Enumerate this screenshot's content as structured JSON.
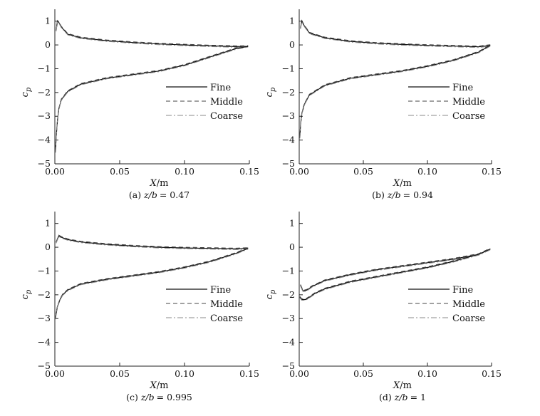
{
  "chart_data": [
    {
      "type": "line",
      "caption": "(a) z/b = 0.47",
      "caption_prefix": "(a) ",
      "caption_var": "z/b",
      "caption_value": "= 0.47",
      "xlabel": "X/m",
      "xlabel_var": "X",
      "xlabel_unit": "/m",
      "ylabel": "c_p",
      "xlim": [
        0,
        0.15
      ],
      "ylim": [
        -5,
        1.5
      ],
      "xticks": [
        "0.00",
        "0.05",
        "0.10",
        "0.15"
      ],
      "yticks": [
        "1",
        "0",
        "−1",
        "−2",
        "−3",
        "−4",
        "−5"
      ],
      "legend": [
        "Fine",
        "Middle",
        "Coarse"
      ],
      "legend_position": "lower-right",
      "grid": false,
      "series_upper": {
        "x": [
          0.001,
          0.002,
          0.003,
          0.005,
          0.01,
          0.02,
          0.04,
          0.06,
          0.08,
          0.1,
          0.12,
          0.14,
          0.149
        ],
        "y": [
          0.6,
          1.0,
          0.95,
          0.75,
          0.45,
          0.3,
          0.18,
          0.1,
          0.04,
          0.0,
          -0.04,
          -0.07,
          -0.06
        ]
      },
      "series_lower": {
        "x": [
          0.0005,
          0.001,
          0.002,
          0.003,
          0.005,
          0.01,
          0.02,
          0.04,
          0.06,
          0.08,
          0.1,
          0.12,
          0.14,
          0.149
        ],
        "y": [
          -4.5,
          -3.9,
          -3.2,
          -2.7,
          -2.3,
          -1.95,
          -1.65,
          -1.4,
          -1.25,
          -1.1,
          -0.85,
          -0.5,
          -0.15,
          -0.06
        ]
      }
    },
    {
      "type": "line",
      "caption": "(b) z/b = 0.94",
      "caption_prefix": "(b) ",
      "caption_var": "z/b",
      "caption_value": "= 0.94",
      "xlabel": "X/m",
      "xlabel_var": "X",
      "xlabel_unit": "/m",
      "ylabel": "c_p",
      "xlim": [
        0,
        0.15
      ],
      "ylim": [
        -5,
        1.5
      ],
      "xticks": [
        "0.00",
        "0.05",
        "0.10",
        "0.15"
      ],
      "yticks": [
        "1",
        "0",
        "−1",
        "−2",
        "−3",
        "−4",
        "−5"
      ],
      "legend": [
        "Fine",
        "Middle",
        "Coarse"
      ],
      "legend_position": "lower-right",
      "grid": false,
      "series_upper": {
        "x": [
          0.001,
          0.002,
          0.004,
          0.008,
          0.02,
          0.04,
          0.06,
          0.08,
          0.1,
          0.12,
          0.14,
          0.149
        ],
        "y": [
          0.7,
          1.0,
          0.8,
          0.5,
          0.3,
          0.15,
          0.07,
          0.02,
          -0.02,
          -0.05,
          -0.08,
          -0.02
        ]
      },
      "series_lower": {
        "x": [
          0.0005,
          0.001,
          0.002,
          0.004,
          0.008,
          0.02,
          0.04,
          0.06,
          0.08,
          0.1,
          0.12,
          0.14,
          0.149
        ],
        "y": [
          -3.9,
          -3.4,
          -2.9,
          -2.5,
          -2.1,
          -1.7,
          -1.4,
          -1.25,
          -1.1,
          -0.9,
          -0.65,
          -0.3,
          -0.02
        ]
      }
    },
    {
      "type": "line",
      "caption": "(c) z/b = 0.995",
      "caption_prefix": "(c) ",
      "caption_var": "z/b",
      "caption_value": "= 0.995",
      "xlabel": "X/m",
      "xlabel_var": "X",
      "xlabel_unit": "/m",
      "ylabel": "c_p",
      "xlim": [
        0,
        0.15
      ],
      "ylim": [
        -5,
        1.5
      ],
      "xticks": [
        "0.00",
        "0.05",
        "0.10",
        "0.15"
      ],
      "yticks": [
        "1",
        "0",
        "−1",
        "−2",
        "−3",
        "−4",
        "−5"
      ],
      "legend": [
        "Fine",
        "Middle",
        "Coarse"
      ],
      "legend_position": "lower-right",
      "grid": false,
      "series_upper": {
        "x": [
          0.001,
          0.003,
          0.005,
          0.01,
          0.02,
          0.04,
          0.06,
          0.08,
          0.1,
          0.12,
          0.14,
          0.149
        ],
        "y": [
          0.2,
          0.48,
          0.42,
          0.32,
          0.22,
          0.12,
          0.05,
          0.0,
          -0.03,
          -0.05,
          -0.07,
          -0.05
        ]
      },
      "series_lower": {
        "x": [
          0.0005,
          0.001,
          0.002,
          0.004,
          0.006,
          0.01,
          0.02,
          0.04,
          0.06,
          0.08,
          0.1,
          0.12,
          0.14,
          0.149
        ],
        "y": [
          -3.0,
          -2.8,
          -2.5,
          -2.2,
          -2.0,
          -1.8,
          -1.55,
          -1.35,
          -1.2,
          -1.05,
          -0.85,
          -0.6,
          -0.25,
          -0.05
        ]
      }
    },
    {
      "type": "line",
      "caption": "(d) z/b = 1",
      "caption_prefix": "(d) ",
      "caption_var": "z/b",
      "caption_value": "= 1",
      "xlabel": "X/m",
      "xlabel_var": "X",
      "xlabel_unit": "/m",
      "ylabel": "c_p",
      "xlim": [
        0,
        0.15
      ],
      "ylim": [
        -5,
        1.5
      ],
      "xticks": [
        "0.00",
        "0.05",
        "0.10",
        "0.15"
      ],
      "yticks": [
        "1",
        "0",
        "−1",
        "−2",
        "−3",
        "−4",
        "−5"
      ],
      "legend": [
        "Fine",
        "Middle",
        "Coarse"
      ],
      "legend_position": "lower-right",
      "grid": false,
      "series_upper": {
        "x": [
          0.001,
          0.003,
          0.006,
          0.01,
          0.02,
          0.04,
          0.06,
          0.08,
          0.1,
          0.12,
          0.14,
          0.149
        ],
        "y": [
          -1.6,
          -1.85,
          -1.8,
          -1.65,
          -1.4,
          -1.15,
          -0.95,
          -0.8,
          -0.65,
          -0.5,
          -0.3,
          -0.08
        ]
      },
      "series_lower": {
        "x": [
          0.0005,
          0.002,
          0.005,
          0.008,
          0.012,
          0.02,
          0.04,
          0.06,
          0.08,
          0.1,
          0.12,
          0.14,
          0.149
        ],
        "y": [
          -2.1,
          -2.2,
          -2.2,
          -2.1,
          -1.95,
          -1.75,
          -1.45,
          -1.25,
          -1.05,
          -0.85,
          -0.6,
          -0.3,
          -0.08
        ]
      }
    }
  ]
}
